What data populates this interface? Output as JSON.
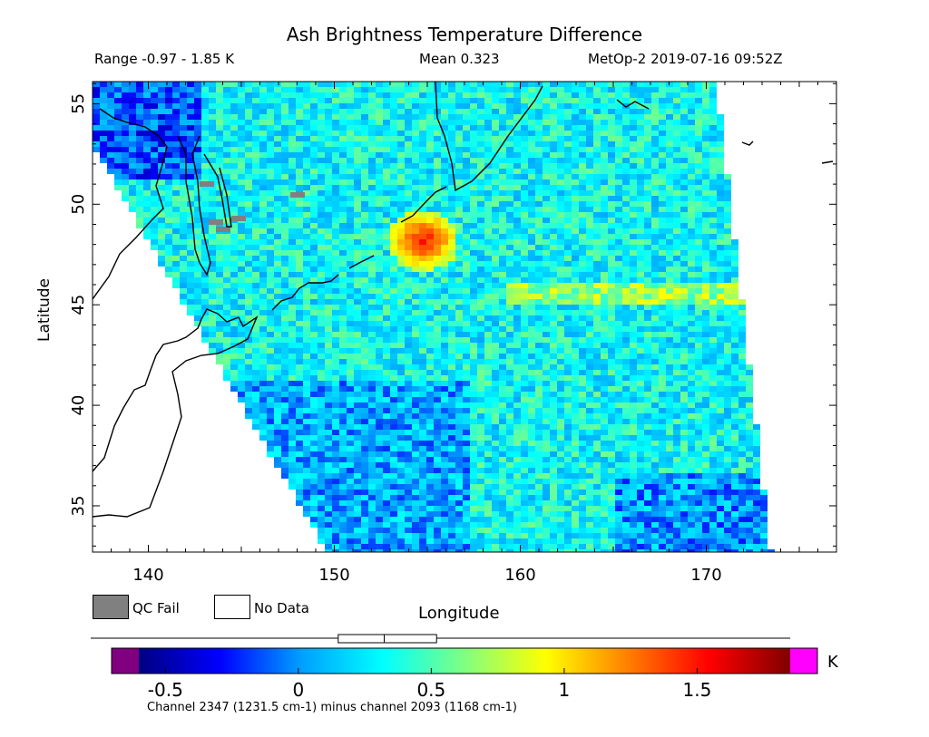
{
  "header": {
    "title": "Ash Brightness Temperature Difference",
    "range_text": "Range -0.97 - 1.85 K",
    "mean_text": "Mean 0.323",
    "satellite_time": "MetOp-2 2019-07-16 09:52Z"
  },
  "chart_data": {
    "type": "heatmap",
    "title": "Ash Brightness Temperature Difference",
    "xlabel": "Longitude",
    "ylabel": "Latitude",
    "xlim": [
      137,
      177
    ],
    "ylim": [
      32.7,
      56.1
    ],
    "x_ticks": [
      "140",
      "150",
      "160",
      "170"
    ],
    "x_tick_values": [
      140,
      150,
      160,
      170
    ],
    "y_ticks": [
      "35",
      "40",
      "45",
      "50",
      "55"
    ],
    "y_tick_values": [
      35,
      40,
      45,
      50,
      55
    ],
    "grid": false,
    "value_range": [
      -0.97,
      1.85
    ],
    "mean": 0.323,
    "unit": "K",
    "hotspot": {
      "lon": 154.8,
      "lat": 48.2,
      "value": 1.55
    },
    "colorbar": {
      "min": -0.6,
      "max": 1.85,
      "tick_labels": [
        "-0.5",
        "0",
        "0.5",
        "1",
        "1.5"
      ],
      "tick_values": [
        -0.5,
        0,
        0.5,
        1,
        1.5
      ],
      "unit": "K",
      "under_color": "#800080",
      "over_color": "#ff00ff",
      "stops": [
        "#000080",
        "#0000ff",
        "#00a0ff",
        "#00ffff",
        "#80ff80",
        "#ffff00",
        "#ff8000",
        "#ff0000",
        "#800000"
      ],
      "range_box": {
        "low": 0.15,
        "mean": 0.323,
        "high": 0.52
      }
    },
    "legend": [
      {
        "label": "QC Fail",
        "color": "#808080"
      },
      {
        "label": "No Data",
        "color": "#ffffff"
      }
    ]
  },
  "footnote": "Channel 2347 (1231.5 cm-1) minus channel 2093 (1168 cm-1)"
}
